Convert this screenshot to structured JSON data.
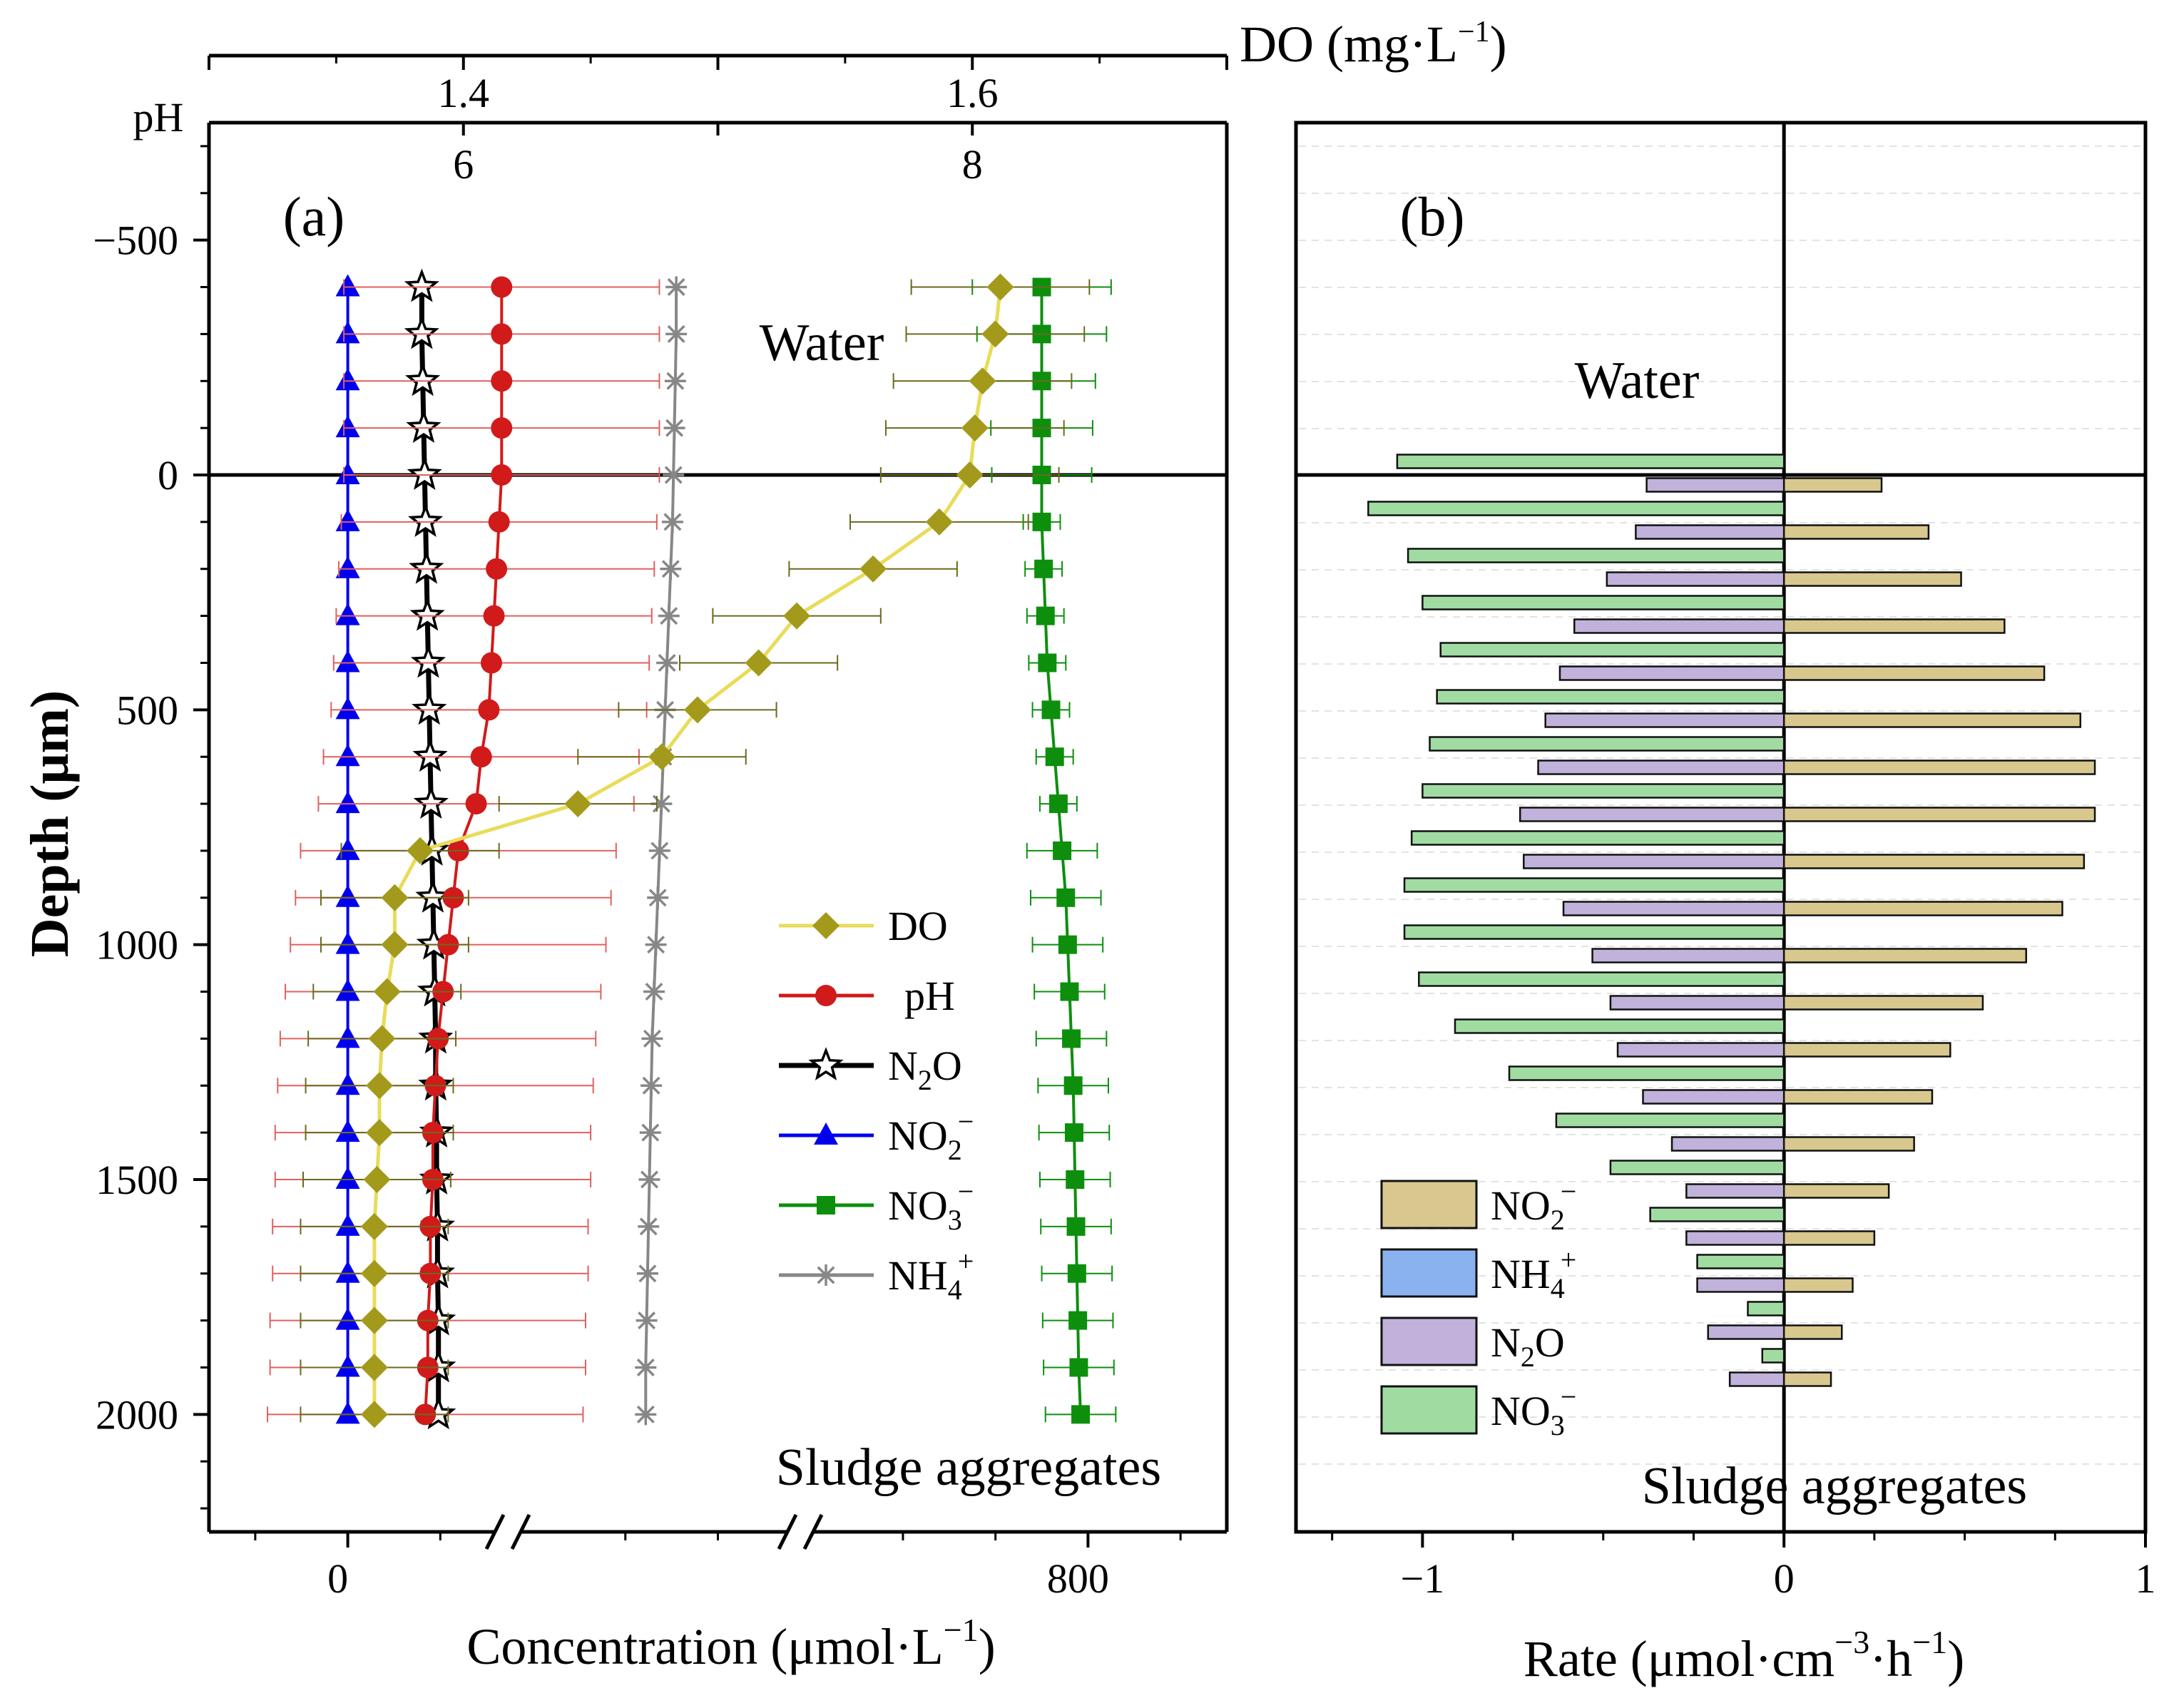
{
  "chart_data": [
    {
      "type": "line",
      "panel_label": "(a)",
      "title": "",
      "ylabel": "Depth (μm)",
      "xlabel": "Concentration (μmol·L",
      "xlabel_sup": "−1",
      "xlabel_end": ")",
      "top_axis_label": "DO (mg·L",
      "top_axis_sup": "−1",
      "top_axis_end": ")",
      "ph_axis_label": "pH",
      "ylim": [
        -750,
        2250
      ],
      "yticks": [
        -500,
        0,
        500,
        1000,
        1500,
        2000
      ],
      "ytick_labels": [
        "−500",
        "0",
        "500",
        "1000",
        "1500",
        "2000"
      ],
      "x_ticks": [
        {
          "value": 0,
          "label": "0"
        },
        {
          "value": 800,
          "label": "800"
        }
      ],
      "x_range": [
        -150,
        950
      ],
      "do_ticks": [
        {
          "value": 1.4,
          "label": "1.4"
        },
        {
          "value": 1.6,
          "label": "1.6"
        }
      ],
      "do_range": [
        1.3,
        1.7
      ],
      "ph_ticks": [
        {
          "value": 6,
          "label": "6"
        },
        {
          "value": 8,
          "label": "8"
        }
      ],
      "ph_range": [
        5,
        9
      ],
      "region_labels": {
        "water": "Water",
        "sludge": "Sludge aggregates"
      },
      "depth": [
        -400,
        -300,
        -200,
        -100,
        0,
        100,
        200,
        300,
        400,
        500,
        600,
        700,
        800,
        900,
        1000,
        1100,
        1200,
        1300,
        1400,
        1500,
        1600,
        1700,
        1800,
        1900,
        2000
      ],
      "series": [
        {
          "key": "do",
          "name": "DO",
          "unit": "mg/L",
          "color": "#e8dc5a",
          "marker_color": "#a39a1c",
          "err_color": "#6b6a1c",
          "values": [
            1.611,
            1.609,
            1.604,
            1.601,
            1.599,
            1.587,
            1.561,
            1.531,
            1.516,
            1.492,
            1.478,
            1.445,
            1.383,
            1.373,
            1.373,
            1.37,
            1.368,
            1.367,
            1.367,
            1.366,
            1.365,
            1.365,
            1.365,
            1.365,
            1.365
          ],
          "errors": [
            0.035,
            0.035,
            0.035,
            0.035,
            0.035,
            0.035,
            0.033,
            0.033,
            0.031,
            0.031,
            0.033,
            0.031,
            0.031,
            0.029,
            0.029,
            0.029,
            0.029,
            0.029,
            0.029,
            0.029,
            0.029,
            0.029,
            0.029,
            0.029,
            0.029
          ]
        },
        {
          "key": "ph",
          "name": "pH",
          "unit": "pH",
          "color": "#d11a1a",
          "marker_color": "#d11a1a",
          "err_color": "#e06060",
          "values": [
            6.15,
            6.15,
            6.15,
            6.15,
            6.15,
            6.14,
            6.13,
            6.12,
            6.11,
            6.1,
            6.07,
            6.05,
            5.98,
            5.96,
            5.94,
            5.92,
            5.9,
            5.89,
            5.88,
            5.88,
            5.87,
            5.87,
            5.86,
            5.86,
            5.85
          ],
          "errors": [
            0.62,
            0.62,
            0.62,
            0.62,
            0.62,
            0.62,
            0.62,
            0.62,
            0.62,
            0.62,
            0.62,
            0.62,
            0.62,
            0.62,
            0.62,
            0.62,
            0.62,
            0.62,
            0.62,
            0.62,
            0.62,
            0.62,
            0.62,
            0.62,
            0.62
          ]
        },
        {
          "key": "n2o",
          "name": "N",
          "sub": "2",
          "tail": "O",
          "unit": "umol",
          "color": "#000000",
          "marker_color": "#ffffff",
          "err_color": "#000000",
          "values": [
            80,
            80,
            81,
            82,
            83,
            84,
            85,
            86,
            87,
            88,
            89,
            90,
            91,
            92,
            93,
            94,
            95,
            95,
            96,
            96,
            97,
            97,
            98,
            98,
            98
          ],
          "errors": []
        },
        {
          "key": "no2",
          "name": "NO",
          "sub": "2",
          "sup": "−",
          "unit": "umol",
          "color": "#0000ee",
          "marker_color": "#0000ee",
          "err_color": "#0000ee",
          "values": [
            0,
            0,
            0,
            0,
            0,
            0,
            0,
            0,
            0,
            0,
            0,
            0,
            0,
            0,
            0,
            0,
            0,
            0,
            0,
            0,
            0,
            0,
            0,
            0,
            0
          ],
          "errors": []
        },
        {
          "key": "no3",
          "name": "NO",
          "sub": "3",
          "sup": "−",
          "unit": "umol",
          "color": "#0d8f0d",
          "marker_color": "#0d8f0d",
          "err_color": "#0d8f0d",
          "values": [
            750,
            750,
            750,
            750,
            750,
            750,
            752,
            754,
            756,
            760,
            764,
            768,
            772,
            776,
            778,
            780,
            782,
            784,
            785,
            786,
            787,
            788,
            789,
            790,
            792
          ],
          "errors": [
            75,
            70,
            58,
            55,
            54,
            20,
            20,
            20,
            20,
            20,
            20,
            20,
            38,
            38,
            38,
            38,
            38,
            38,
            38,
            38,
            38,
            38,
            38,
            38,
            38
          ]
        },
        {
          "key": "nh4",
          "name": "NH",
          "sub": "4",
          "sup": "+",
          "unit": "umol",
          "color": "#878787",
          "marker_color": "#878787",
          "err_color": "#878787",
          "values": [
            355,
            355,
            354,
            353,
            352,
            351,
            349,
            347,
            345,
            343,
            341,
            339,
            337,
            335,
            333,
            331,
            329,
            328,
            327,
            326,
            325,
            324,
            323,
            322,
            322
          ],
          "errors": []
        }
      ]
    },
    {
      "type": "bar",
      "orientation": "horizontal",
      "panel_label": "(b)",
      "title": "",
      "xlabel": "Rate (μmol·cm",
      "xlabel_sup1": "−3",
      "xlabel_mid": "·h",
      "xlabel_sup2": "−1",
      "xlabel_end": ")",
      "xlim": [
        -1.35,
        1.0
      ],
      "x_ticks": [
        {
          "value": -1,
          "label": "−1"
        },
        {
          "value": 0,
          "label": "0"
        },
        {
          "value": 1,
          "label": "1"
        }
      ],
      "region_labels": {
        "water": "Water",
        "sludge": "Sludge aggregates"
      },
      "groups": [
        {
          "no3": -1.07,
          "n2o": -0.38,
          "no2": 0.27
        },
        {
          "no3": -1.15,
          "n2o": -0.41,
          "no2": 0.4
        },
        {
          "no3": -1.04,
          "n2o": -0.49,
          "no2": 0.49
        },
        {
          "no3": -1.0,
          "n2o": -0.58,
          "no2": 0.61
        },
        {
          "no3": -0.95,
          "n2o": -0.62,
          "no2": 0.72
        },
        {
          "no3": -0.96,
          "n2o": -0.66,
          "no2": 0.82
        },
        {
          "no3": -0.98,
          "n2o": -0.68,
          "no2": 0.86
        },
        {
          "no3": -1.0,
          "n2o": -0.73,
          "no2": 0.86
        },
        {
          "no3": -1.03,
          "n2o": -0.72,
          "no2": 0.83
        },
        {
          "no3": -1.05,
          "n2o": -0.61,
          "no2": 0.77
        },
        {
          "no3": -1.05,
          "n2o": -0.53,
          "no2": 0.67
        },
        {
          "no3": -1.01,
          "n2o": -0.48,
          "no2": 0.55
        },
        {
          "no3": -0.91,
          "n2o": -0.46,
          "no2": 0.46
        },
        {
          "no3": -0.76,
          "n2o": -0.39,
          "no2": 0.41
        },
        {
          "no3": -0.63,
          "n2o": -0.31,
          "no2": 0.36
        },
        {
          "no3": -0.48,
          "n2o": -0.27,
          "no2": 0.29
        },
        {
          "no3": -0.37,
          "n2o": -0.27,
          "no2": 0.25
        },
        {
          "no3": -0.24,
          "n2o": -0.24,
          "no2": 0.19
        },
        {
          "no3": -0.1,
          "n2o": -0.21,
          "no2": 0.16
        },
        {
          "no3": -0.06,
          "n2o": -0.15,
          "no2": 0.13
        }
      ],
      "series_styles": {
        "no2": {
          "fill": "#d8c88e"
        },
        "nh4": {
          "fill": "#8ab2ee"
        },
        "n2o": {
          "fill": "#c0b2da"
        },
        "no3": {
          "fill": "#a0dca2"
        }
      },
      "legend": [
        {
          "key": "no2",
          "name": "NO",
          "sub": "2",
          "sup": "−"
        },
        {
          "key": "nh4",
          "name": "NH",
          "sub": "4",
          "sup": "+"
        },
        {
          "key": "n2o",
          "name": "N",
          "sub": "2",
          "tail": "O"
        },
        {
          "key": "no3",
          "name": "NO",
          "sub": "3",
          "sup": "−"
        }
      ]
    }
  ]
}
